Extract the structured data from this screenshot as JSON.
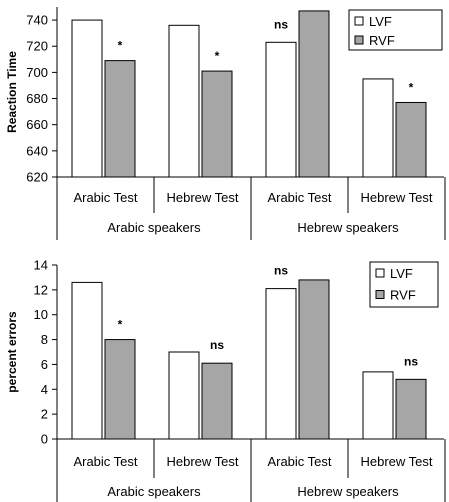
{
  "chart_data": [
    {
      "type": "bar",
      "ylabel": "Reaction Time",
      "ylim": [
        620,
        750
      ],
      "yticks": [
        620,
        640,
        660,
        680,
        700,
        720,
        740
      ],
      "categories": [
        "Arabic Test",
        "Hebrew Test",
        "Arabic Test",
        "Hebrew Test"
      ],
      "groups": [
        {
          "label": "Arabic speakers",
          "categories": 2
        },
        {
          "label": "Hebrew speakers",
          "categories": 2
        }
      ],
      "series": [
        {
          "name": "LVF",
          "color": "#ffffff",
          "values": [
            740,
            736,
            723,
            695
          ]
        },
        {
          "name": "RVF",
          "color": "#a6a6a6",
          "values": [
            709,
            701,
            747,
            677
          ]
        }
      ],
      "annotations": [
        {
          "category": 0,
          "series": 1,
          "text": "*"
        },
        {
          "category": 1,
          "series": 1,
          "text": "*"
        },
        {
          "category": 2,
          "series": 0,
          "text": "ns"
        },
        {
          "category": 3,
          "series": 1,
          "text": "*"
        }
      ],
      "legend_position": "top-right",
      "grid": false
    },
    {
      "type": "bar",
      "ylabel": "percent errors",
      "ylim": [
        0,
        14
      ],
      "yticks": [
        0,
        2,
        4,
        6,
        8,
        10,
        12,
        14
      ],
      "categories": [
        "Arabic Test",
        "Hebrew Test",
        "Arabic Test",
        "Hebrew Test"
      ],
      "groups": [
        {
          "label": "Arabic speakers",
          "categories": 2
        },
        {
          "label": "Hebrew speakers",
          "categories": 2
        }
      ],
      "series": [
        {
          "name": "LVF",
          "color": "#ffffff",
          "values": [
            12.6,
            7.0,
            12.1,
            5.4
          ]
        },
        {
          "name": "RVF",
          "color": "#a6a6a6",
          "values": [
            8.0,
            6.1,
            12.8,
            4.8
          ]
        }
      ],
      "annotations": [
        {
          "category": 0,
          "series": 1,
          "text": "*"
        },
        {
          "category": 1,
          "series": 1,
          "text": "ns"
        },
        {
          "category": 2,
          "series": 0,
          "text": "ns"
        },
        {
          "category": 3,
          "series": 1,
          "text": "ns"
        }
      ],
      "legend_position": "top-right",
      "grid": false
    }
  ]
}
